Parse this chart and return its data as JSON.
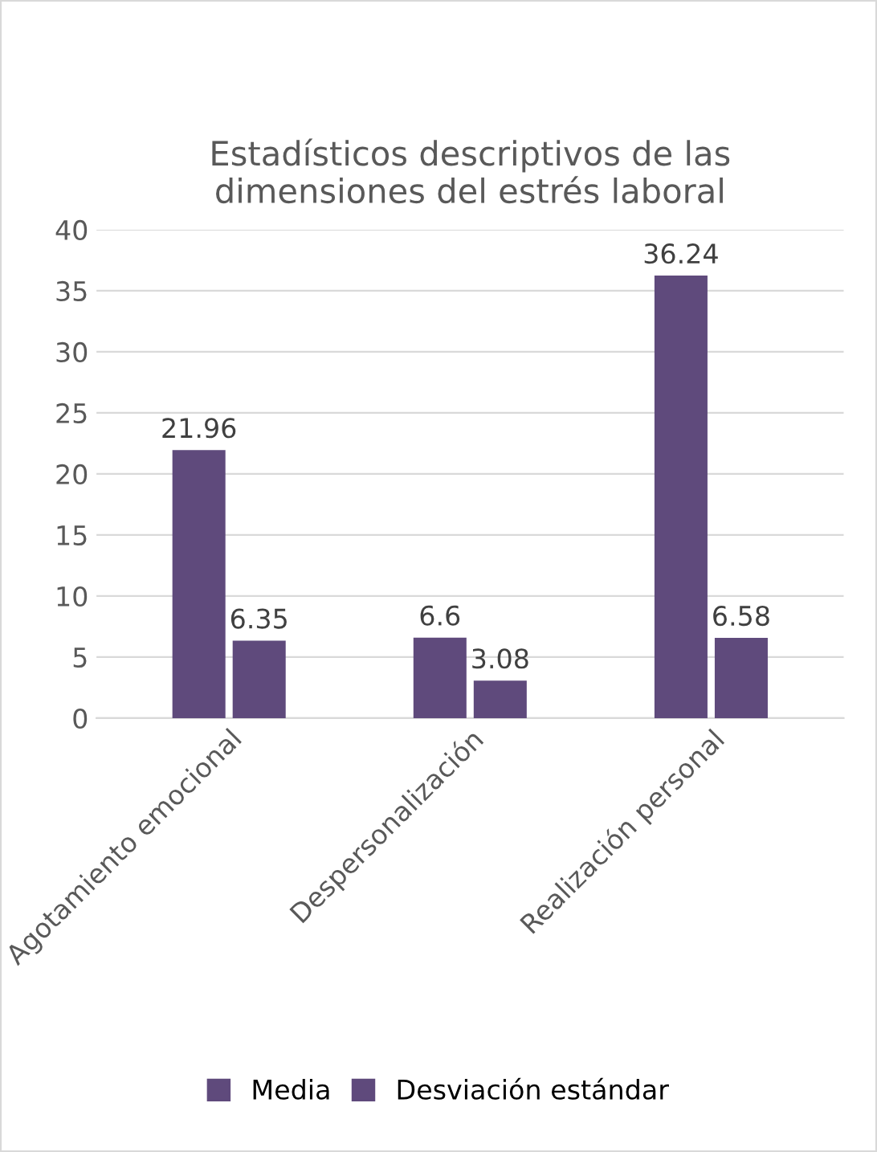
{
  "chart_data": {
    "type": "bar",
    "title": "Estadísticos descriptivos de las\ndimensiones del estrés laboral",
    "categories": [
      "Agotamiento emocional",
      "Despersonalización",
      "Realización personal"
    ],
    "series": [
      {
        "name": "Media",
        "color": "#5f4a7c",
        "values": [
          21.96,
          6.6,
          36.24
        ]
      },
      {
        "name": "Desviación estándar",
        "color": "#5f4a7c",
        "values": [
          6.35,
          3.08,
          6.58
        ]
      }
    ],
    "ylim": [
      0,
      40
    ],
    "yticks": [
      0,
      5,
      10,
      15,
      20,
      25,
      30,
      35,
      40
    ],
    "grid": "y",
    "legend": "bottom",
    "data_labels": true
  }
}
